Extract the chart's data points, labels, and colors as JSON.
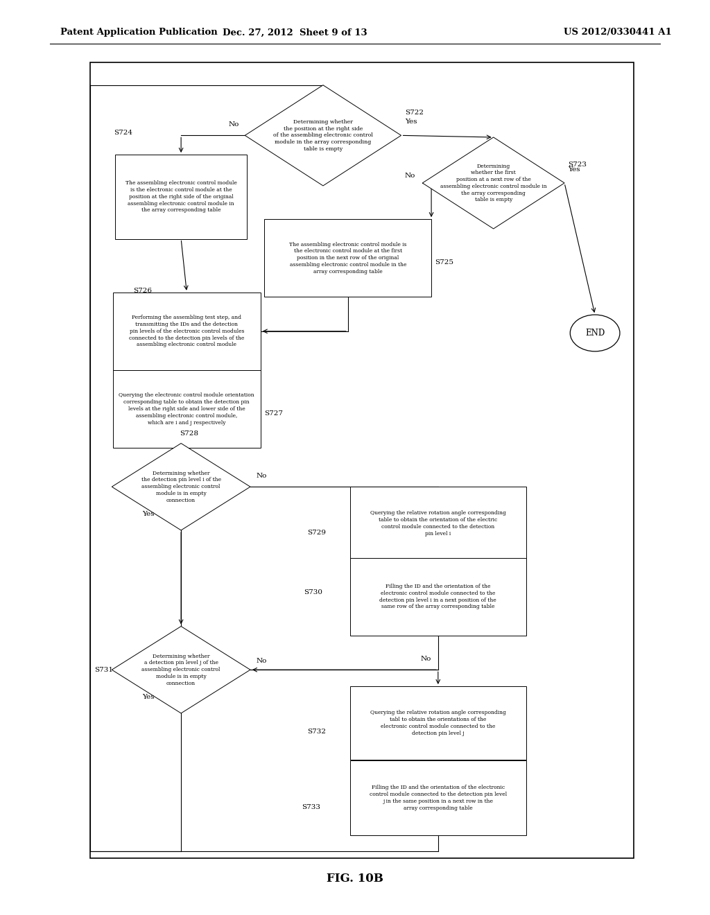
{
  "title_left": "Patent Application Publication",
  "title_mid": "Dec. 27, 2012  Sheet 9 of 13",
  "title_right": "US 2012/0330441 A1",
  "fig_label": "FIG. 10B",
  "background": "#ffffff"
}
